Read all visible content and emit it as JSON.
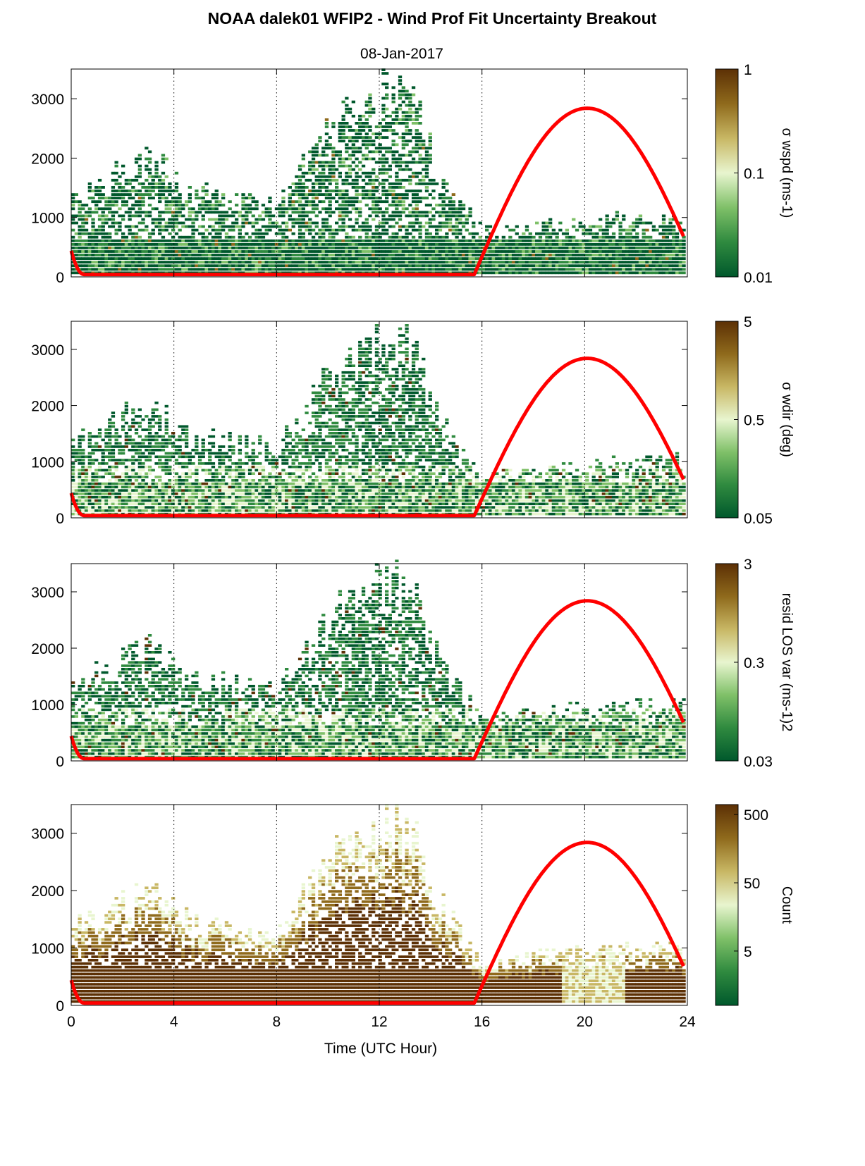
{
  "title": "NOAA dalek01 WFIP2 - Wind Prof Fit Uncertainty Breakout",
  "subtitle": "08-Jan-2017",
  "colors": {
    "colormap": [
      "#00582c",
      "#2f8a3f",
      "#7fc068",
      "#e8f5cf",
      "#c8b764",
      "#8f6a1c",
      "#5c3005"
    ],
    "sun_curve": "#ff0000",
    "axis": "#000000"
  },
  "chart_data": [
    {
      "type": "heatmap",
      "xlabel": "",
      "ylabel": "",
      "xlim": [
        0,
        24
      ],
      "ylim": [
        0,
        3500
      ],
      "x_ticks": [
        0,
        4,
        8,
        12,
        16,
        20,
        24
      ],
      "x_ticklabels": [
        "",
        "",
        "",
        "",
        "",
        "",
        ""
      ],
      "y_ticks": [
        0,
        1000,
        2000,
        3000
      ],
      "y_ticklabels": [
        "0",
        "1000",
        "2000",
        "3000"
      ],
      "vertical_gridlines_x": [
        4,
        8,
        12,
        16,
        20
      ],
      "colorbar": {
        "label": "σ wspd (ms-1)",
        "scale": "log",
        "range": [
          0.01,
          1
        ],
        "ticks": [
          0.01,
          0.1,
          1
        ],
        "ticklabels": [
          "0.01",
          "0.1",
          "1"
        ]
      },
      "data_top_height_approx": [
        {
          "x": 0,
          "y": 1400
        },
        {
          "x": 3,
          "y": 2200
        },
        {
          "x": 4.5,
          "y": 1600
        },
        {
          "x": 8,
          "y": 1300
        },
        {
          "x": 10,
          "y": 2700
        },
        {
          "x": 11.9,
          "y": 3400
        },
        {
          "x": 13.2,
          "y": 3400
        },
        {
          "x": 14.2,
          "y": 2000
        },
        {
          "x": 16,
          "y": 800
        },
        {
          "x": 20,
          "y": 1000
        },
        {
          "x": 24,
          "y": 1100
        }
      ],
      "sun_elevation_curve": {
        "t0": 0,
        "y0": 400,
        "zero_from": 0.5,
        "zero_to": 15.7,
        "peak_x": 20.1,
        "peak_y": 2800,
        "end_x": 23.85,
        "end_y": 750
      }
    },
    {
      "type": "heatmap",
      "xlabel": "",
      "ylabel": "",
      "xlim": [
        0,
        24
      ],
      "ylim": [
        0,
        3500
      ],
      "x_ticks": [
        0,
        4,
        8,
        12,
        16,
        20,
        24
      ],
      "x_ticklabels": [
        "",
        "",
        "",
        "",
        "",
        "",
        ""
      ],
      "y_ticks": [
        0,
        1000,
        2000,
        3000
      ],
      "y_ticklabels": [
        "0",
        "1000",
        "2000",
        "3000"
      ],
      "vertical_gridlines_x": [
        4,
        8,
        12,
        16,
        20
      ],
      "colorbar": {
        "label": "σ wdir (deg)",
        "scale": "log",
        "range": [
          0.05,
          5
        ],
        "ticks": [
          0.05,
          0.5,
          5
        ],
        "ticklabels": [
          "0.05",
          "0.5",
          "5"
        ]
      },
      "data_top_height_approx": [
        {
          "x": 0,
          "y": 1400
        },
        {
          "x": 3,
          "y": 2200
        },
        {
          "x": 4.5,
          "y": 1600
        },
        {
          "x": 8,
          "y": 1300
        },
        {
          "x": 10,
          "y": 2700
        },
        {
          "x": 11.9,
          "y": 3400
        },
        {
          "x": 13.2,
          "y": 3400
        },
        {
          "x": 14.2,
          "y": 2000
        },
        {
          "x": 16,
          "y": 800
        },
        {
          "x": 20,
          "y": 1000
        },
        {
          "x": 24,
          "y": 1100
        }
      ],
      "sun_elevation_curve": {
        "t0": 0,
        "y0": 400,
        "zero_from": 0.5,
        "zero_to": 15.7,
        "peak_x": 20.1,
        "peak_y": 2800,
        "end_x": 23.85,
        "end_y": 750
      }
    },
    {
      "type": "heatmap",
      "xlabel": "",
      "ylabel": "",
      "xlim": [
        0,
        24
      ],
      "ylim": [
        0,
        3500
      ],
      "x_ticks": [
        0,
        4,
        8,
        12,
        16,
        20,
        24
      ],
      "x_ticklabels": [
        "",
        "",
        "",
        "",
        "",
        "",
        ""
      ],
      "y_ticks": [
        0,
        1000,
        2000,
        3000
      ],
      "y_ticklabels": [
        "0",
        "1000",
        "2000",
        "3000"
      ],
      "vertical_gridlines_x": [
        4,
        8,
        12,
        16,
        20
      ],
      "colorbar": {
        "label": "resid LOS var (ms-1)2",
        "scale": "log",
        "range": [
          0.03,
          3
        ],
        "ticks": [
          0.03,
          0.3,
          3
        ],
        "ticklabels": [
          "0.03",
          "0.3",
          "3"
        ]
      },
      "data_top_height_approx": [
        {
          "x": 0,
          "y": 1400
        },
        {
          "x": 3,
          "y": 2200
        },
        {
          "x": 4.5,
          "y": 1600
        },
        {
          "x": 8,
          "y": 1300
        },
        {
          "x": 10,
          "y": 2700
        },
        {
          "x": 11.9,
          "y": 3400
        },
        {
          "x": 13.2,
          "y": 3400
        },
        {
          "x": 14.2,
          "y": 2000
        },
        {
          "x": 16,
          "y": 800
        },
        {
          "x": 20,
          "y": 1000
        },
        {
          "x": 24,
          "y": 1100
        }
      ],
      "sun_elevation_curve": {
        "t0": 0,
        "y0": 400,
        "zero_from": 0.5,
        "zero_to": 15.7,
        "peak_x": 20.1,
        "peak_y": 2800,
        "end_x": 23.85,
        "end_y": 750
      }
    },
    {
      "type": "heatmap",
      "xlabel": "Time (UTC Hour)",
      "ylabel": "",
      "xlim": [
        0,
        24
      ],
      "ylim": [
        0,
        3500
      ],
      "x_ticks": [
        0,
        4,
        8,
        12,
        16,
        20,
        24
      ],
      "x_ticklabels": [
        "0",
        "4",
        "8",
        "12",
        "16",
        "20",
        "24"
      ],
      "y_ticks": [
        0,
        1000,
        2000,
        3000
      ],
      "y_ticklabels": [
        "0",
        "1000",
        "2000",
        "3000"
      ],
      "vertical_gridlines_x": [
        4,
        8,
        12,
        16,
        20
      ],
      "colorbar": {
        "label": "Count",
        "scale": "log",
        "range": [
          0.8,
          700
        ],
        "ticks": [
          5,
          50,
          500
        ],
        "ticklabels": [
          "5",
          "50",
          "500"
        ]
      },
      "data_top_height_approx": [
        {
          "x": 0,
          "y": 1400
        },
        {
          "x": 3,
          "y": 2200
        },
        {
          "x": 4.5,
          "y": 1600
        },
        {
          "x": 8,
          "y": 1300
        },
        {
          "x": 10,
          "y": 2700
        },
        {
          "x": 11.9,
          "y": 3400
        },
        {
          "x": 13.2,
          "y": 3400
        },
        {
          "x": 14.2,
          "y": 2000
        },
        {
          "x": 16,
          "y": 800
        },
        {
          "x": 20,
          "y": 1000
        },
        {
          "x": 24,
          "y": 1100
        }
      ],
      "sun_elevation_curve": {
        "t0": 0,
        "y0": 400,
        "zero_from": 0.5,
        "zero_to": 15.7,
        "peak_x": 20.1,
        "peak_y": 2800,
        "end_x": 23.85,
        "end_y": 750
      }
    }
  ]
}
